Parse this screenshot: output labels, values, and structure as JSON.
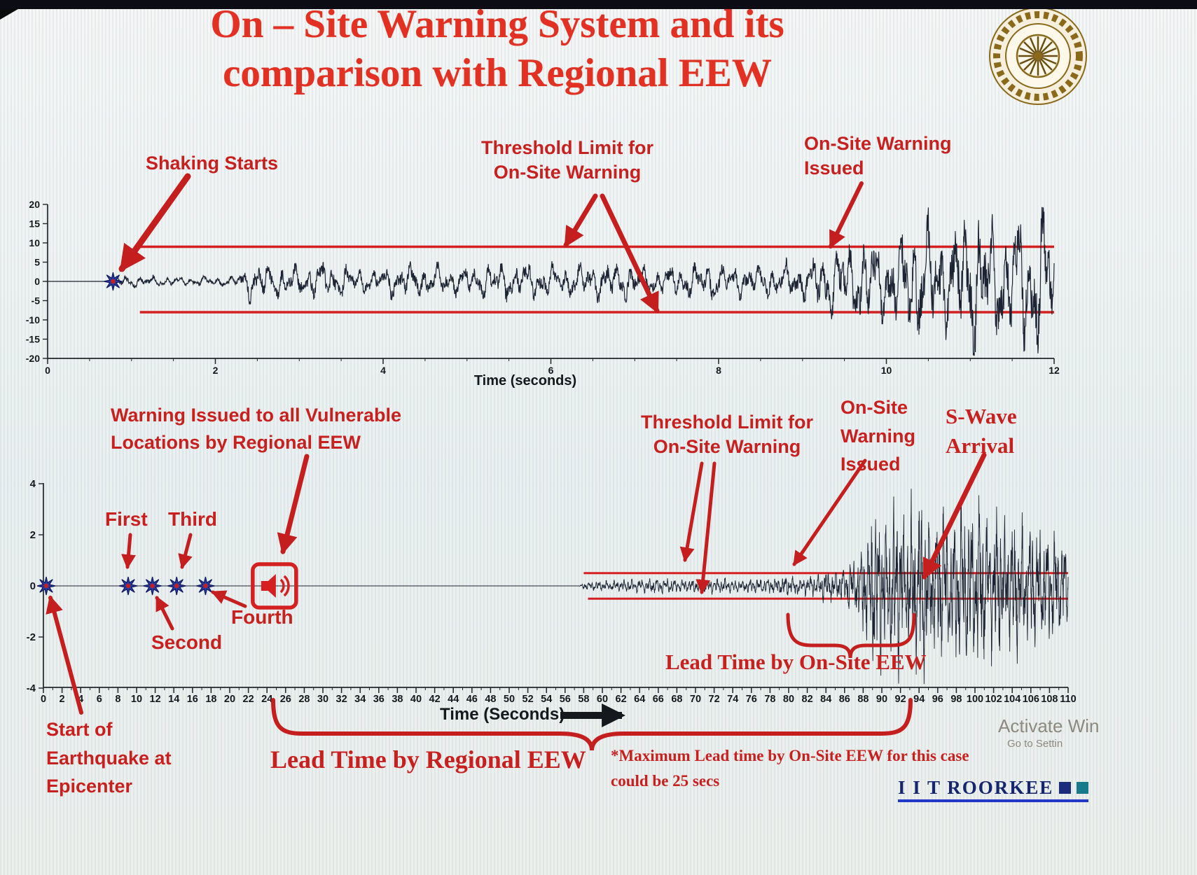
{
  "slide": {
    "title": {
      "line1": "On – Site Warning System and its",
      "line2": "comparison with Regional EEW"
    },
    "footer": {
      "brand": "I I T ROORKEE"
    },
    "watermark": {
      "line1": "Activate Win",
      "line2": "Go to Settin"
    },
    "colors": {
      "accent_red": "#c8201f",
      "title_red": "#e23122",
      "threshold_red": "#d42020",
      "waveform": "#1c2433",
      "marker_blue": "#2a3aa0",
      "navy": "#16266e",
      "teal": "#177a8a"
    }
  },
  "labels": {
    "top": {
      "shaking": "Shaking Starts",
      "threshold1": "Threshold Limit for",
      "threshold2": "On-Site Warning",
      "issued1": "On-Site Warning",
      "issued2": "Issued",
      "xlabel": "Time (seconds)"
    },
    "bottom": {
      "regional1": "Warning Issued to all Vulnerable",
      "regional2": "Locations by Regional EEW",
      "threshold1": "Threshold Limit for",
      "threshold2": "On-Site Warning",
      "issued1": "On-Site",
      "issued2": "Warning",
      "issued3": "Issued",
      "swave1": "S-Wave",
      "swave2": "Arrival",
      "first": "First",
      "second": "Second",
      "third": "Third",
      "fourth": "Fourth",
      "start1": "Start of",
      "start2": "Earthquake at",
      "start3": "Epicenter",
      "lead_onsite": "Lead Time by On-Site EEW",
      "lead_regional": "Lead Time by Regional EEW",
      "note1": "*Maximum Lead time by On-Site EEW for this case",
      "note2": "could be 25 secs",
      "xlabel": "Time (Seconds)"
    }
  },
  "chart_data": [
    {
      "id": "top-seismogram",
      "type": "line",
      "title": "",
      "xlabel": "Time (seconds)",
      "ylabel": "",
      "xlim": [
        0,
        12
      ],
      "ylim": [
        -20,
        20
      ],
      "xticks": [
        0,
        2,
        4,
        6,
        8,
        10,
        12
      ],
      "yticks": [
        20,
        15,
        10,
        5,
        0,
        -5,
        -10,
        -15,
        -20
      ],
      "grid": false,
      "thresholds": {
        "upper": 9,
        "lower": -8,
        "from_x": 1.05,
        "to_x": 12
      },
      "shaking_start_x": 0.78,
      "onsite_warning_issued_x": 9.3,
      "frequencies": [
        6.5,
        11.8,
        2.9
      ],
      "envelope": [
        [
          0,
          0
        ],
        [
          0.72,
          0
        ],
        [
          0.8,
          1.4
        ],
        [
          1.6,
          1.0
        ],
        [
          2.25,
          1.2
        ],
        [
          2.45,
          4.6
        ],
        [
          2.9,
          3.2
        ],
        [
          3.3,
          4.4
        ],
        [
          3.8,
          2.6
        ],
        [
          4.3,
          4.2
        ],
        [
          4.9,
          3.0
        ],
        [
          5.5,
          4.6
        ],
        [
          6.1,
          3.4
        ],
        [
          6.7,
          4.4
        ],
        [
          7.3,
          3.0
        ],
        [
          7.9,
          4.2
        ],
        [
          8.5,
          3.4
        ],
        [
          9.0,
          4.4
        ],
        [
          9.35,
          7.5
        ],
        [
          9.7,
          10
        ],
        [
          10.0,
          8.5
        ],
        [
          10.35,
          14
        ],
        [
          10.7,
          11
        ],
        [
          11.05,
          16.5
        ],
        [
          11.4,
          12.5
        ],
        [
          11.75,
          17
        ],
        [
          12,
          14
        ]
      ]
    },
    {
      "id": "bottom-seismogram",
      "type": "line",
      "title": "",
      "xlabel": "Time (Seconds)",
      "ylabel": "",
      "xlim": [
        0,
        110
      ],
      "ylim": [
        -4,
        4
      ],
      "xticks": [
        0,
        2,
        4,
        6,
        8,
        10,
        12,
        14,
        16,
        18,
        20,
        22,
        24,
        26,
        28,
        30,
        32,
        34,
        36,
        38,
        40,
        42,
        44,
        46,
        48,
        50,
        52,
        54,
        56,
        58,
        60,
        62,
        64,
        66,
        68,
        70,
        72,
        74,
        76,
        78,
        80,
        82,
        84,
        86,
        88,
        90,
        92,
        94,
        96,
        98,
        100,
        102,
        104,
        106,
        108,
        110
      ],
      "yticks": [
        4,
        2,
        0,
        -2,
        -4
      ],
      "grid": false,
      "thresholds": {
        "upper": 0.5,
        "lower": -0.5,
        "from_x": 58,
        "to_x": 110
      },
      "p_markers": [
        {
          "x": 0.3
        },
        {
          "x": 9.1
        },
        {
          "x": 11.7
        },
        {
          "x": 14.3
        },
        {
          "x": 17.4
        }
      ],
      "warning_icon_x": 24.8,
      "swave_arrival_x": 88,
      "onsite_warning_issued_x": 80,
      "lead_time_regional_span": [
        24.8,
        93
      ],
      "lead_time_onsite_span": [
        80,
        93
      ],
      "frequencies": [
        2.6,
        4.7,
        1.1
      ],
      "envelope": [
        [
          0,
          0
        ],
        [
          57.5,
          0
        ],
        [
          58,
          0.12
        ],
        [
          60,
          0.16
        ],
        [
          63,
          0.2
        ],
        [
          66,
          0.24
        ],
        [
          69,
          0.2
        ],
        [
          72,
          0.25
        ],
        [
          75,
          0.2
        ],
        [
          78,
          0.26
        ],
        [
          80,
          0.34
        ],
        [
          81.5,
          0.28
        ],
        [
          83,
          0.42
        ],
        [
          85,
          0.5
        ],
        [
          86.5,
          0.7
        ],
        [
          87.5,
          1.1
        ],
        [
          88.5,
          2.0
        ],
        [
          89.5,
          2.9
        ],
        [
          90.5,
          2.1
        ],
        [
          91.5,
          2.9
        ],
        [
          92.5,
          1.9
        ],
        [
          93.5,
          2.7
        ],
        [
          94.5,
          3.0
        ],
        [
          95.5,
          2.1
        ],
        [
          96.5,
          2.8
        ],
        [
          97.5,
          2.0
        ],
        [
          98.5,
          2.7
        ],
        [
          99.5,
          2.2
        ],
        [
          100.5,
          2.9
        ],
        [
          101.5,
          2.0
        ],
        [
          102.5,
          2.5
        ],
        [
          103.5,
          1.8
        ],
        [
          104.5,
          2.3
        ],
        [
          105.5,
          1.6
        ],
        [
          106.5,
          2.1
        ],
        [
          107.5,
          1.5
        ],
        [
          108.5,
          1.9
        ],
        [
          110,
          1.3
        ]
      ]
    }
  ]
}
